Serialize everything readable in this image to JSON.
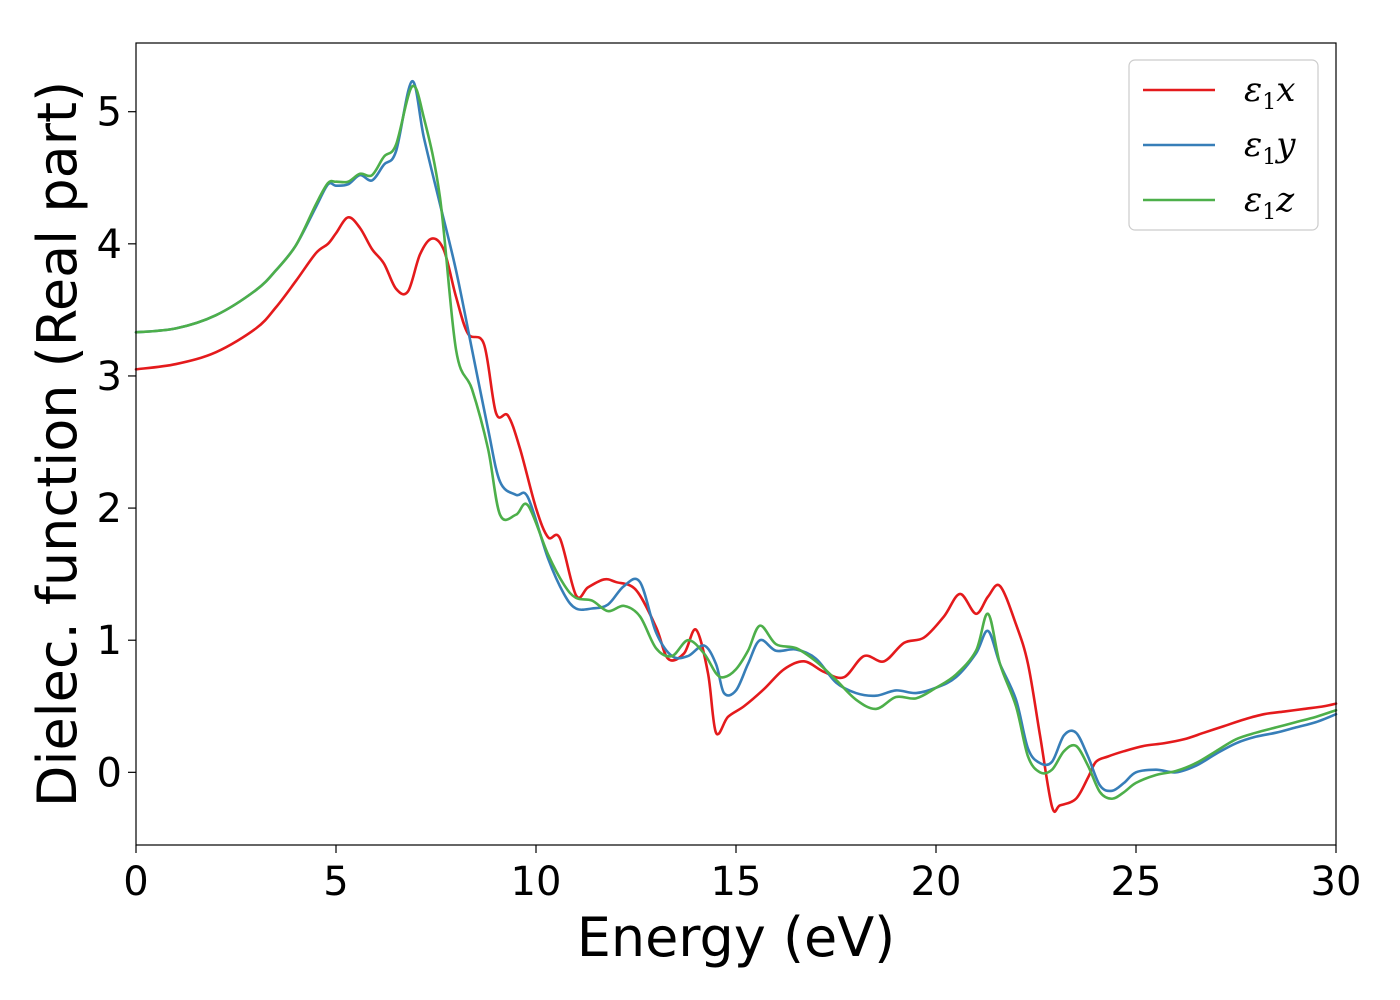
{
  "chart_data": {
    "type": "line",
    "xlabel": "Energy (eV)",
    "ylabel": "Dielec. function (Real part)",
    "xlim": [
      0,
      30
    ],
    "ylim": [
      -0.55,
      5.52
    ],
    "xticks": [
      0,
      5,
      10,
      15,
      20,
      25,
      30
    ],
    "xtick_labels": [
      "0",
      "5",
      "10",
      "15",
      "20",
      "25",
      "30"
    ],
    "yticks": [
      0,
      1,
      2,
      3,
      4,
      5
    ],
    "ytick_labels": [
      "0",
      "1",
      "2",
      "3",
      "4",
      "5"
    ],
    "grid": false,
    "legend_position": "top-right",
    "series": [
      {
        "name": "ε1x",
        "symbol": "ε",
        "sub": "1",
        "comp": "x",
        "color": "#e41a1c",
        "x": [
          0,
          1,
          2,
          3,
          3.5,
          4,
          4.5,
          4.8,
          5,
          5.3,
          5.6,
          5.9,
          6.2,
          6.5,
          6.8,
          7.1,
          7.4,
          7.7,
          8,
          8.3,
          8.7,
          9,
          9.3,
          9.6,
          10,
          10.3,
          10.6,
          11,
          11.3,
          11.7,
          12,
          12.5,
          13,
          13.3,
          13.7,
          14,
          14.3,
          14.5,
          14.8,
          15.2,
          15.7,
          16.2,
          16.7,
          17.2,
          17.7,
          18.2,
          18.7,
          19.2,
          19.7,
          20.2,
          20.6,
          21,
          21.3,
          21.6,
          22,
          22.3,
          22.6,
          22.9,
          23.1,
          23.5,
          23.8,
          24,
          24.3,
          24.7,
          25.2,
          25.7,
          26.2,
          26.7,
          27.2,
          27.7,
          28.2,
          28.7,
          29.2,
          29.7,
          30
        ],
        "y": [
          3.05,
          3.09,
          3.18,
          3.36,
          3.52,
          3.72,
          3.93,
          4.0,
          4.08,
          4.2,
          4.12,
          3.96,
          3.85,
          3.66,
          3.64,
          3.92,
          4.04,
          3.95,
          3.6,
          3.32,
          3.24,
          2.72,
          2.7,
          2.45,
          2.0,
          1.78,
          1.77,
          1.34,
          1.4,
          1.46,
          1.44,
          1.38,
          1.1,
          0.86,
          0.9,
          1.08,
          0.75,
          0.3,
          0.42,
          0.5,
          0.63,
          0.78,
          0.84,
          0.76,
          0.72,
          0.88,
          0.84,
          0.98,
          1.02,
          1.18,
          1.35,
          1.2,
          1.33,
          1.41,
          1.12,
          0.82,
          0.28,
          -0.26,
          -0.25,
          -0.2,
          -0.04,
          0.08,
          0.12,
          0.16,
          0.2,
          0.22,
          0.25,
          0.3,
          0.35,
          0.4,
          0.44,
          0.46,
          0.48,
          0.5,
          0.52
        ]
      },
      {
        "name": "ε1y",
        "symbol": "ε",
        "sub": "1",
        "comp": "y",
        "color": "#377eb8",
        "x": [
          0,
          1,
          2,
          3,
          3.5,
          4,
          4.5,
          4.8,
          5,
          5.3,
          5.6,
          5.9,
          6.2,
          6.5,
          6.9,
          7.2,
          7.6,
          8,
          8.4,
          8.8,
          9.1,
          9.5,
          9.8,
          10.3,
          10.7,
          11,
          11.4,
          11.8,
          12.2,
          12.6,
          13,
          13.4,
          13.8,
          14.2,
          14.5,
          14.7,
          15,
          15.3,
          15.6,
          16,
          16.5,
          17,
          17.5,
          18,
          18.5,
          19,
          19.5,
          20,
          20.5,
          21,
          21.3,
          21.6,
          22,
          22.3,
          22.6,
          22.9,
          23.2,
          23.5,
          23.8,
          24.1,
          24.4,
          24.7,
          25,
          25.5,
          26,
          26.5,
          27,
          27.5,
          28,
          28.5,
          29,
          29.5,
          30
        ],
        "y": [
          3.33,
          3.36,
          3.46,
          3.65,
          3.8,
          3.99,
          4.28,
          4.45,
          4.44,
          4.45,
          4.52,
          4.48,
          4.6,
          4.7,
          5.23,
          4.8,
          4.3,
          3.8,
          3.2,
          2.6,
          2.2,
          2.1,
          2.08,
          1.62,
          1.35,
          1.24,
          1.24,
          1.27,
          1.41,
          1.44,
          1.06,
          0.88,
          0.88,
          0.96,
          0.82,
          0.6,
          0.62,
          0.82,
          1.0,
          0.92,
          0.93,
          0.86,
          0.68,
          0.6,
          0.58,
          0.62,
          0.6,
          0.64,
          0.72,
          0.9,
          1.07,
          0.82,
          0.55,
          0.18,
          0.07,
          0.08,
          0.28,
          0.3,
          0.12,
          -0.1,
          -0.14,
          -0.08,
          0.0,
          0.02,
          0.0,
          0.05,
          0.14,
          0.22,
          0.27,
          0.3,
          0.34,
          0.38,
          0.44
        ]
      },
      {
        "name": "ε1z",
        "symbol": "ε",
        "sub": "1",
        "comp": "z",
        "color": "#4daf4a",
        "x": [
          0,
          1,
          2,
          3,
          3.5,
          4,
          4.5,
          4.8,
          5,
          5.3,
          5.6,
          5.9,
          6.2,
          6.5,
          6.9,
          7.2,
          7.6,
          8,
          8.4,
          8.8,
          9.1,
          9.5,
          9.8,
          10.3,
          10.7,
          11,
          11.4,
          11.8,
          12.2,
          12.6,
          13,
          13.4,
          13.8,
          14.2,
          14.5,
          14.7,
          15,
          15.3,
          15.6,
          16,
          16.5,
          17,
          17.5,
          18,
          18.5,
          19,
          19.5,
          20,
          20.5,
          21,
          21.3,
          21.6,
          22,
          22.3,
          22.6,
          22.9,
          23.2,
          23.5,
          23.8,
          24.1,
          24.4,
          24.7,
          25,
          25.5,
          26,
          26.5,
          27,
          27.5,
          28,
          28.5,
          29,
          29.5,
          30
        ],
        "y": [
          3.33,
          3.36,
          3.46,
          3.65,
          3.8,
          3.99,
          4.3,
          4.46,
          4.47,
          4.47,
          4.53,
          4.52,
          4.66,
          4.75,
          5.19,
          4.95,
          4.35,
          3.2,
          2.9,
          2.45,
          1.95,
          1.95,
          2.02,
          1.65,
          1.42,
          1.32,
          1.3,
          1.22,
          1.26,
          1.18,
          0.94,
          0.88,
          1.0,
          0.9,
          0.75,
          0.72,
          0.78,
          0.92,
          1.11,
          0.97,
          0.94,
          0.84,
          0.7,
          0.55,
          0.48,
          0.57,
          0.56,
          0.64,
          0.74,
          0.92,
          1.2,
          0.82,
          0.5,
          0.12,
          0.0,
          0.02,
          0.16,
          0.2,
          0.05,
          -0.15,
          -0.2,
          -0.15,
          -0.08,
          -0.02,
          0.01,
          0.07,
          0.16,
          0.25,
          0.3,
          0.34,
          0.38,
          0.42,
          0.47
        ]
      }
    ]
  }
}
